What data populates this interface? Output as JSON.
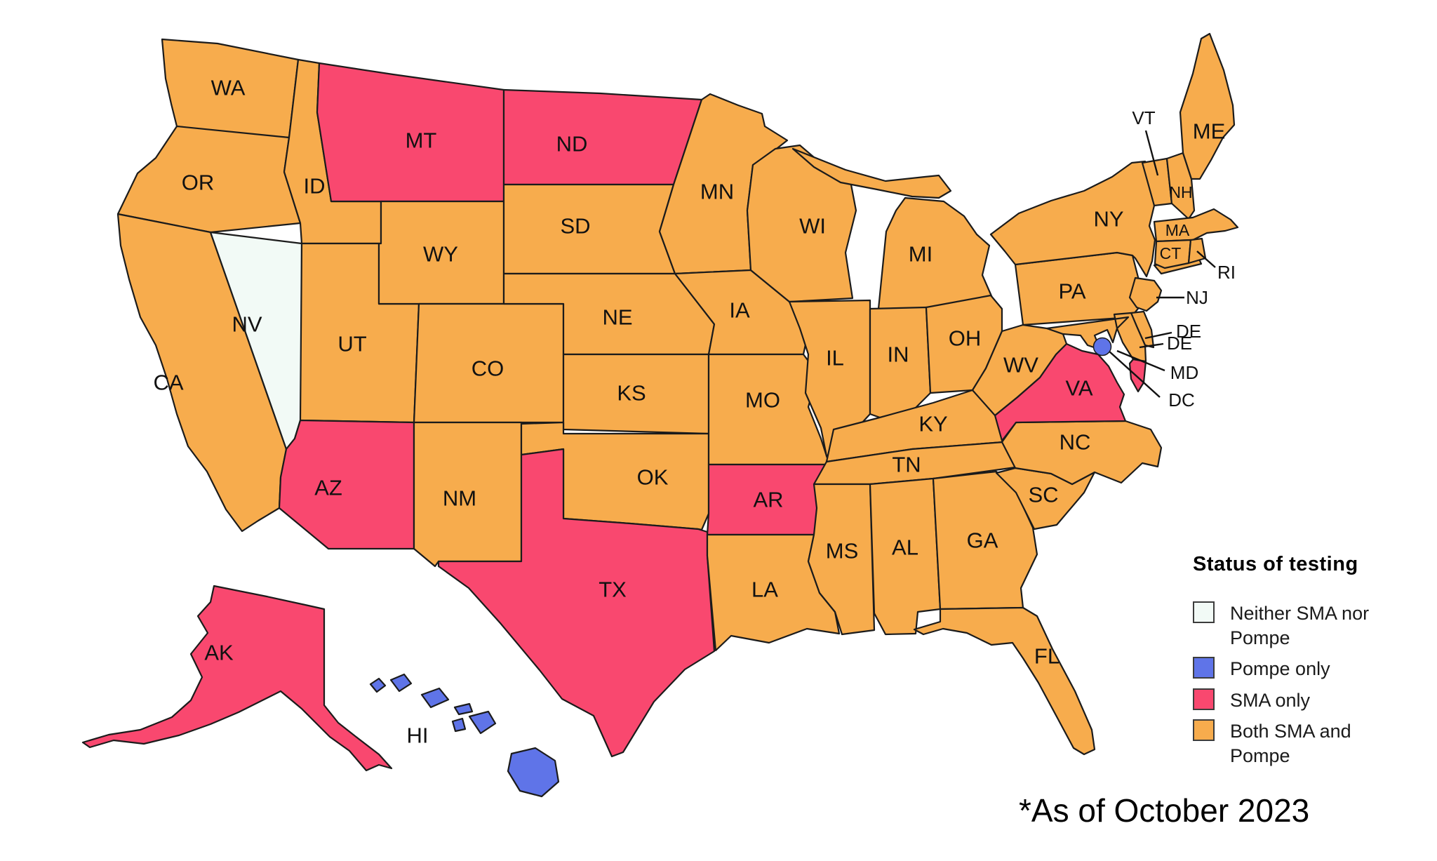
{
  "legend": {
    "title": "Status of testing",
    "items": [
      {
        "status": "neither",
        "label": "Neither SMA nor Pompe",
        "color": "#F2FAF6"
      },
      {
        "status": "pompe_only",
        "label": "Pompe only",
        "color": "#5F74E8"
      },
      {
        "status": "sma_only",
        "label": "SMA only",
        "color": "#F9486F"
      },
      {
        "status": "both",
        "label": "Both SMA and Pompe",
        "color": "#F7AC4D"
      }
    ]
  },
  "map": {
    "states": [
      {
        "abbr": "WA",
        "status": "both"
      },
      {
        "abbr": "OR",
        "status": "both"
      },
      {
        "abbr": "CA",
        "status": "both"
      },
      {
        "abbr": "NV",
        "status": "neither"
      },
      {
        "abbr": "ID",
        "status": "both"
      },
      {
        "abbr": "UT",
        "status": "both"
      },
      {
        "abbr": "AZ",
        "status": "sma_only"
      },
      {
        "abbr": "MT",
        "status": "sma_only"
      },
      {
        "abbr": "WY",
        "status": "both"
      },
      {
        "abbr": "CO",
        "status": "both"
      },
      {
        "abbr": "NM",
        "status": "both"
      },
      {
        "abbr": "ND",
        "status": "sma_only"
      },
      {
        "abbr": "SD",
        "status": "both"
      },
      {
        "abbr": "NE",
        "status": "both"
      },
      {
        "abbr": "KS",
        "status": "both"
      },
      {
        "abbr": "OK",
        "status": "both"
      },
      {
        "abbr": "TX",
        "status": "sma_only"
      },
      {
        "abbr": "MN",
        "status": "both"
      },
      {
        "abbr": "IA",
        "status": "both"
      },
      {
        "abbr": "MO",
        "status": "both"
      },
      {
        "abbr": "AR",
        "status": "sma_only"
      },
      {
        "abbr": "LA",
        "status": "both"
      },
      {
        "abbr": "WI",
        "status": "both"
      },
      {
        "abbr": "IL",
        "status": "both"
      },
      {
        "abbr": "MI",
        "status": "both"
      },
      {
        "abbr": "IN",
        "status": "both"
      },
      {
        "abbr": "OH",
        "status": "both"
      },
      {
        "abbr": "KY",
        "status": "both"
      },
      {
        "abbr": "TN",
        "status": "both"
      },
      {
        "abbr": "MS",
        "status": "both"
      },
      {
        "abbr": "AL",
        "status": "both"
      },
      {
        "abbr": "GA",
        "status": "both"
      },
      {
        "abbr": "FL",
        "status": "both"
      },
      {
        "abbr": "SC",
        "status": "both"
      },
      {
        "abbr": "NC",
        "status": "both"
      },
      {
        "abbr": "VA",
        "status": "sma_only"
      },
      {
        "abbr": "WV",
        "status": "both"
      },
      {
        "abbr": "PA",
        "status": "both"
      },
      {
        "abbr": "NY",
        "status": "both"
      },
      {
        "abbr": "NJ",
        "status": "both"
      },
      {
        "abbr": "DE",
        "status": "both"
      },
      {
        "abbr": "MD",
        "status": "both"
      },
      {
        "abbr": "VT",
        "status": "both"
      },
      {
        "abbr": "NH",
        "status": "both"
      },
      {
        "abbr": "MA",
        "status": "both"
      },
      {
        "abbr": "CT",
        "status": "both"
      },
      {
        "abbr": "RI",
        "status": "both"
      },
      {
        "abbr": "ME",
        "status": "both"
      },
      {
        "abbr": "AK",
        "status": "sma_only"
      },
      {
        "abbr": "HI",
        "status": "pompe_only"
      }
    ],
    "district": {
      "abbr": "DC",
      "status": "pompe_only"
    },
    "callouts": [
      {
        "id": "VT",
        "text": "VT"
      },
      {
        "id": "RI",
        "text": "RI"
      },
      {
        "id": "NJ",
        "text": "NJ"
      },
      {
        "id": "DE1",
        "text": "DE"
      },
      {
        "id": "DE2",
        "text": "DE"
      },
      {
        "id": "MD",
        "text": "MD"
      },
      {
        "id": "DC",
        "text": "DC"
      }
    ]
  },
  "footnote": "*As of October 2023"
}
